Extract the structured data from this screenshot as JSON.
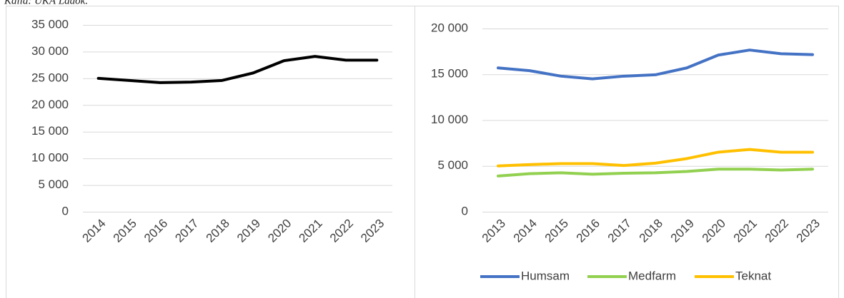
{
  "note": "Källa: UKÄ Ladok.",
  "chart_data": [
    {
      "type": "line",
      "categories": [
        "2014",
        "2015",
        "2016",
        "2017",
        "2018",
        "2019",
        "2020",
        "2021",
        "2022",
        "2023"
      ],
      "series": [
        {
          "name": null,
          "color": "#000000",
          "values": [
            25000,
            24600,
            24200,
            24300,
            24600,
            26000,
            28300,
            29100,
            28400,
            28400
          ]
        }
      ],
      "ylim": [
        0,
        35000
      ],
      "yticks": [
        {
          "value": 0,
          "label": "0"
        },
        {
          "value": 5000,
          "label": "5 000"
        },
        {
          "value": 10000,
          "label": "10 000"
        },
        {
          "value": 15000,
          "label": "15 000"
        },
        {
          "value": 20000,
          "label": "20 000"
        },
        {
          "value": 25000,
          "label": "25 000"
        },
        {
          "value": 30000,
          "label": "30 000"
        },
        {
          "value": 35000,
          "label": "35 000"
        }
      ],
      "grid": true,
      "legend": false
    },
    {
      "type": "line",
      "categories": [
        "2013",
        "2014",
        "2015",
        "2016",
        "2017",
        "2018",
        "2019",
        "2020",
        "2021",
        "2022",
        "2023"
      ],
      "series": [
        {
          "name": "Humsam",
          "color": "#4472c4",
          "values": [
            15700,
            15400,
            14800,
            14500,
            14800,
            14950,
            15700,
            17100,
            17650,
            17250,
            17150
          ]
        },
        {
          "name": "Medfarm",
          "color": "#92d050",
          "values": [
            3900,
            4150,
            4250,
            4100,
            4200,
            4250,
            4400,
            4650,
            4650,
            4550,
            4650
          ]
        },
        {
          "name": "Teknat",
          "color": "#ffc000",
          "values": [
            5000,
            5150,
            5250,
            5250,
            5050,
            5300,
            5800,
            6500,
            6800,
            6500,
            6500
          ]
        }
      ],
      "ylim": [
        0,
        20000
      ],
      "yticks": [
        {
          "value": 0,
          "label": "0"
        },
        {
          "value": 5000,
          "label": "5 000"
        },
        {
          "value": 10000,
          "label": "10 000"
        },
        {
          "value": 15000,
          "label": "15 000"
        },
        {
          "value": 20000,
          "label": "20 000"
        }
      ],
      "grid": true,
      "legend": "bottom"
    }
  ]
}
